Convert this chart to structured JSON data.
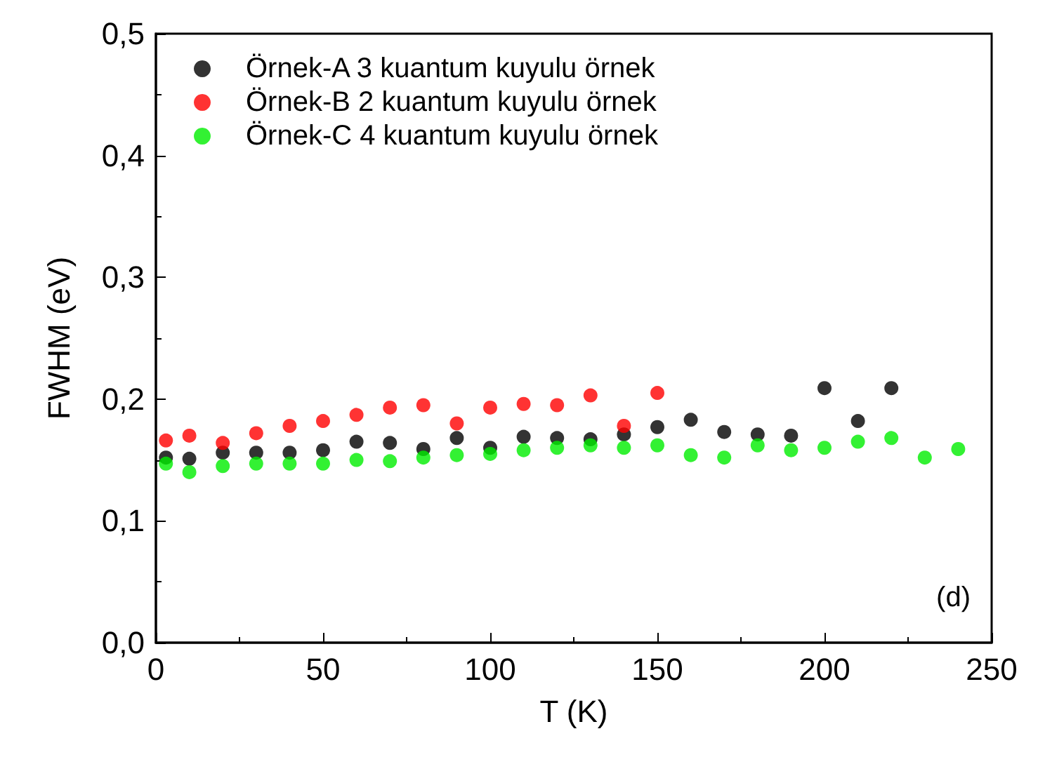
{
  "chart_data": {
    "type": "scatter",
    "xlabel": "T (K)",
    "ylabel": "FWHM (eV)",
    "annotations": [
      "(d)"
    ],
    "legend": "top left",
    "grid": false,
    "marker": "circle",
    "xlim": [
      0,
      250
    ],
    "xticks": [
      0,
      50,
      100,
      150,
      200,
      250
    ],
    "ylim": [
      0,
      0.5
    ],
    "yticks": [
      {
        "value": 0,
        "label": "0,0"
      },
      {
        "value": 0.1,
        "label": "0,1"
      },
      {
        "value": 0.2,
        "label": "0,2"
      },
      {
        "value": 0.3,
        "label": "0,3"
      },
      {
        "value": 0.4,
        "label": "0,4"
      },
      {
        "value": 0.5,
        "label": "0,5"
      }
    ],
    "series": [
      {
        "name": "Örnek-A 3 kuantum kuyulu örnek",
        "color": "#000000",
        "x": [
          3,
          10,
          20,
          30,
          40,
          50,
          60,
          70,
          80,
          90,
          100,
          110,
          120,
          130,
          140,
          150,
          160,
          170,
          180,
          190,
          200,
          210,
          220
        ],
        "values": [
          0.152,
          0.151,
          0.156,
          0.156,
          0.156,
          0.158,
          0.165,
          0.164,
          0.159,
          0.168,
          0.16,
          0.169,
          0.168,
          0.167,
          0.171,
          0.177,
          0.183,
          0.173,
          0.171,
          0.17,
          0.209,
          0.182,
          0.209
        ]
      },
      {
        "name": "Örnek-B 2 kuantum kuyulu örnek",
        "color": "#ff0000",
        "x": [
          3,
          10,
          20,
          30,
          40,
          50,
          60,
          70,
          80,
          90,
          100,
          110,
          120,
          130,
          140,
          150
        ],
        "values": [
          0.166,
          0.17,
          0.164,
          0.172,
          0.178,
          0.182,
          0.187,
          0.193,
          0.195,
          0.18,
          0.193,
          0.196,
          0.195,
          0.203,
          0.178,
          0.205
        ]
      },
      {
        "name": "Örnek-C 4 kuantum kuyulu örnek",
        "color": "#00ee00",
        "x": [
          3,
          10,
          20,
          30,
          40,
          50,
          60,
          70,
          80,
          90,
          100,
          110,
          120,
          130,
          140,
          150,
          160,
          170,
          180,
          190,
          200,
          210,
          220,
          230,
          240
        ],
        "values": [
          0.147,
          0.14,
          0.145,
          0.147,
          0.147,
          0.147,
          0.15,
          0.149,
          0.152,
          0.154,
          0.155,
          0.158,
          0.16,
          0.162,
          0.16,
          0.162,
          0.154,
          0.152,
          0.162,
          0.158,
          0.16,
          0.165,
          0.168,
          0.152,
          0.159
        ]
      }
    ]
  }
}
